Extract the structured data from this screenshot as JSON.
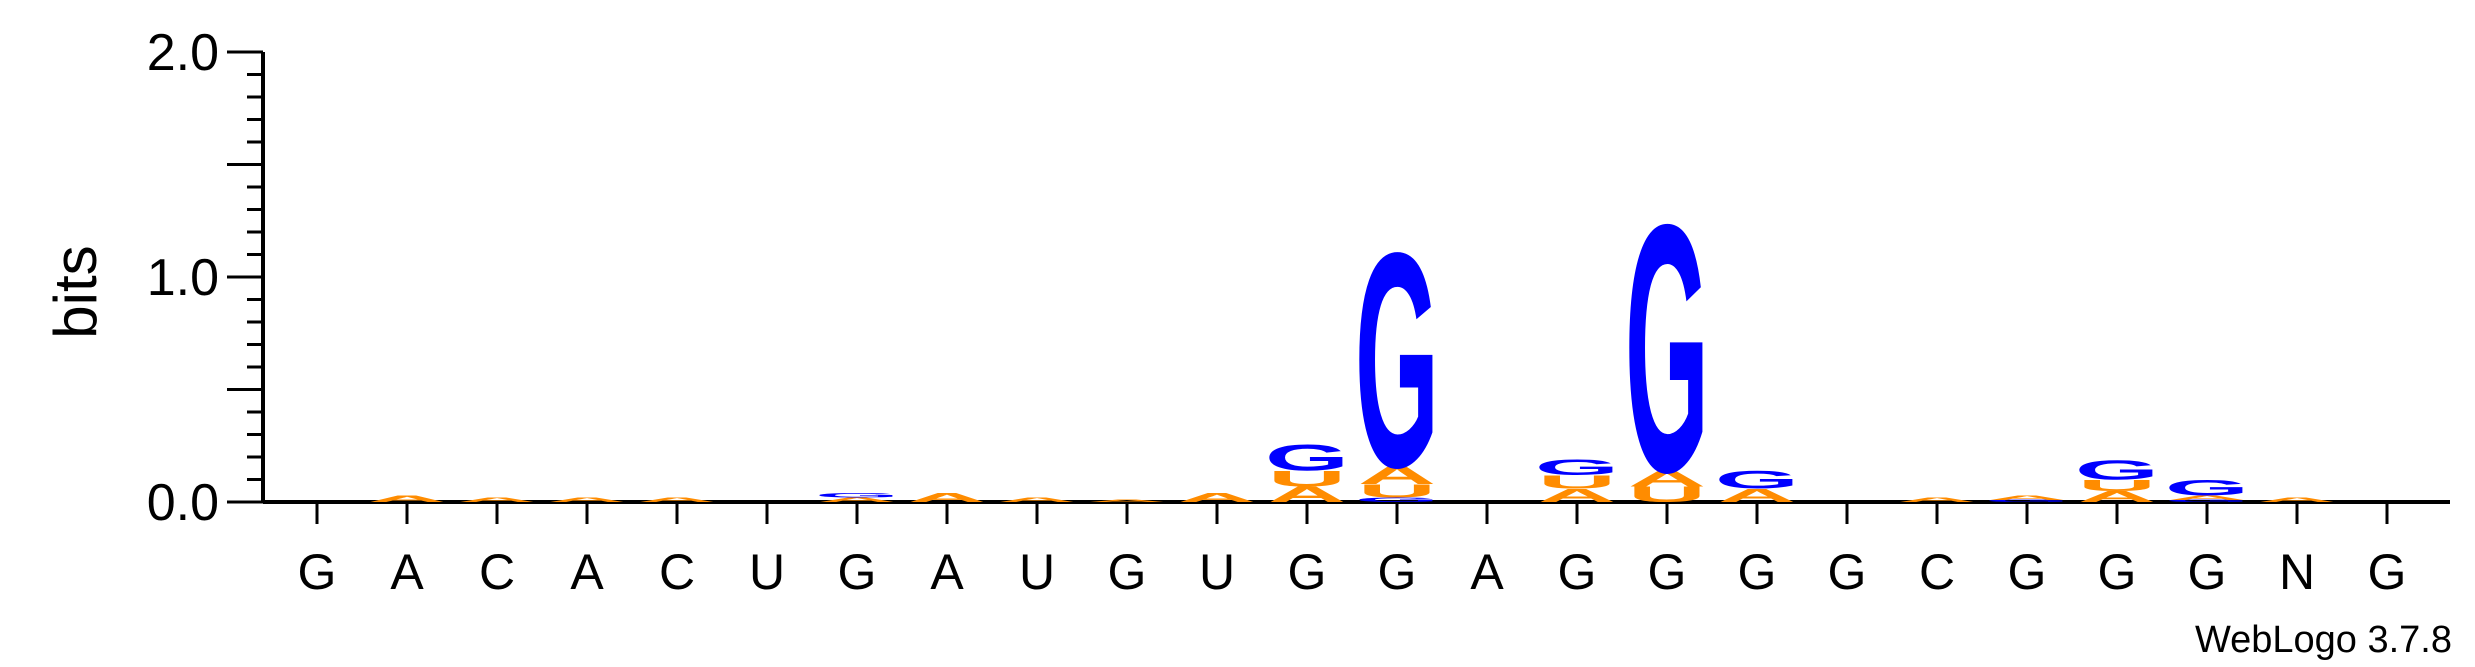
{
  "chart_data": {
    "type": "sequence-logo",
    "ylabel": "bits",
    "ylim": [
      0,
      2.0
    ],
    "yticks": [
      {
        "value": 2.0,
        "label": "2.0"
      },
      {
        "value": 1.0,
        "label": "1.0"
      },
      {
        "value": 0.0,
        "label": "0.0"
      }
    ],
    "positions": [
      "G",
      "A",
      "C",
      "A",
      "C",
      "U",
      "G",
      "A",
      "U",
      "G",
      "U",
      "G",
      "G",
      "A",
      "G",
      "G",
      "G",
      "G",
      "C",
      "G",
      "G",
      "G",
      "N",
      "G"
    ],
    "stacks": [
      [],
      [
        {
          "letter": "A",
          "bits": 0.03
        }
      ],
      [
        {
          "letter": "A",
          "bits": 0.02
        }
      ],
      [
        {
          "letter": "A",
          "bits": 0.02
        }
      ],
      [
        {
          "letter": "A",
          "bits": 0.02
        }
      ],
      [],
      [
        {
          "letter": "A",
          "bits": 0.02
        },
        {
          "letter": "G",
          "bits": 0.02
        }
      ],
      [
        {
          "letter": "A",
          "bits": 0.04
        }
      ],
      [
        {
          "letter": "A",
          "bits": 0.02
        }
      ],
      [
        {
          "letter": "A",
          "bits": 0.01
        }
      ],
      [
        {
          "letter": "A",
          "bits": 0.04
        }
      ],
      [
        {
          "letter": "A",
          "bits": 0.07
        },
        {
          "letter": "U",
          "bits": 0.07
        },
        {
          "letter": "G",
          "bits": 0.12
        }
      ],
      [
        {
          "letter": "G",
          "bits": 0.02
        },
        {
          "letter": "U",
          "bits": 0.06
        },
        {
          "letter": "A",
          "bits": 0.08
        },
        {
          "letter": "G",
          "bits": 0.98
        }
      ],
      [],
      [
        {
          "letter": "A",
          "bits": 0.06
        },
        {
          "letter": "U",
          "bits": 0.06
        },
        {
          "letter": "G",
          "bits": 0.07
        }
      ],
      [
        {
          "letter": "U",
          "bits": 0.07
        },
        {
          "letter": "A",
          "bits": 0.07
        },
        {
          "letter": "G",
          "bits": 1.13
        }
      ],
      [
        {
          "letter": "A",
          "bits": 0.06
        },
        {
          "letter": "G",
          "bits": 0.08
        }
      ],
      [],
      [
        {
          "letter": "A",
          "bits": 0.02
        }
      ],
      [
        {
          "letter": "G",
          "bits": 0.01
        },
        {
          "letter": "A",
          "bits": 0.02
        }
      ],
      [
        {
          "letter": "A",
          "bits": 0.05
        },
        {
          "letter": "U",
          "bits": 0.05
        },
        {
          "letter": "G",
          "bits": 0.09
        }
      ],
      [
        {
          "letter": "G",
          "bits": 0.01
        },
        {
          "letter": "A",
          "bits": 0.02
        },
        {
          "letter": "G",
          "bits": 0.07
        }
      ],
      [
        {
          "letter": "A",
          "bits": 0.02
        }
      ],
      []
    ],
    "colors": {
      "G": "#0000ff",
      "A": "#ff8c00",
      "U": "#ff8c00",
      "C": "#0000ff"
    },
    "grid": false
  },
  "credit": "WebLogo 3.7.8"
}
